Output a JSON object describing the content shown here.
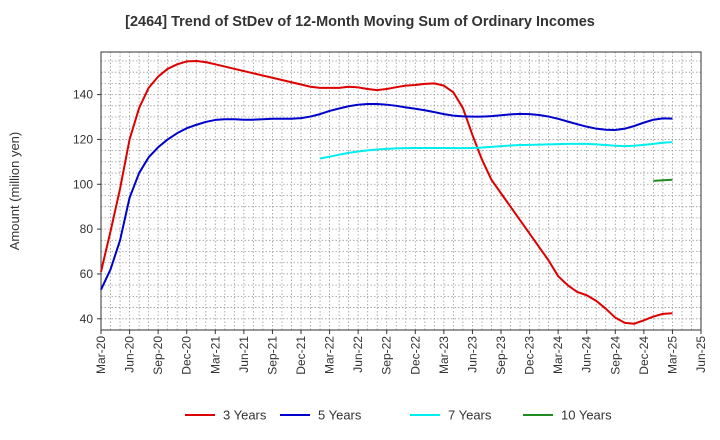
{
  "chart_data": {
    "type": "line",
    "title": "[2464]  Trend of StDev of 12-Month Moving Sum of Ordinary Incomes",
    "xlabel": "",
    "ylabel": "Amount (million yen)",
    "x_ticks": [
      "Mar-20",
      "Jun-20",
      "Sep-20",
      "Dec-20",
      "Mar-21",
      "Jun-21",
      "Sep-21",
      "Dec-21",
      "Mar-22",
      "Jun-22",
      "Sep-22",
      "Dec-22",
      "Mar-23",
      "Jun-23",
      "Sep-23",
      "Dec-23",
      "Mar-24",
      "Jun-24",
      "Sep-24",
      "Dec-24",
      "Mar-25",
      "Jun-25"
    ],
    "y_ticks": [
      40,
      60,
      80,
      100,
      120,
      140
    ],
    "xlim": [
      "2020-03",
      "2025-06"
    ],
    "ylim": [
      35,
      159
    ],
    "grid": true,
    "legend_position": "bottom",
    "series": [
      {
        "name": "3 Years",
        "color": "#dd0000",
        "points": [
          [
            "2020-03",
            61
          ],
          [
            "2020-04",
            79
          ],
          [
            "2020-05",
            98
          ],
          [
            "2020-06",
            120
          ],
          [
            "2020-07",
            134
          ],
          [
            "2020-08",
            143
          ],
          [
            "2020-09",
            148
          ],
          [
            "2020-10",
            151.5
          ],
          [
            "2020-11",
            153.5
          ],
          [
            "2020-12",
            154.8
          ],
          [
            "2021-01",
            155
          ],
          [
            "2021-02",
            154.5
          ],
          [
            "2021-03",
            153.5
          ],
          [
            "2021-04",
            152.5
          ],
          [
            "2021-05",
            151.5
          ],
          [
            "2021-06",
            150.5
          ],
          [
            "2021-07",
            149.5
          ],
          [
            "2021-08",
            148.5
          ],
          [
            "2021-09",
            147.5
          ],
          [
            "2021-10",
            146.5
          ],
          [
            "2021-11",
            145.5
          ],
          [
            "2021-12",
            144.5
          ],
          [
            "2022-01",
            143.5
          ],
          [
            "2022-02",
            143
          ],
          [
            "2022-03",
            143
          ],
          [
            "2022-04",
            143
          ],
          [
            "2022-05",
            143.5
          ],
          [
            "2022-06",
            143.2
          ],
          [
            "2022-07",
            142.5
          ],
          [
            "2022-08",
            142
          ],
          [
            "2022-09",
            142.5
          ],
          [
            "2022-10",
            143.3
          ],
          [
            "2022-11",
            144
          ],
          [
            "2022-12",
            144.3
          ],
          [
            "2023-01",
            144.8
          ],
          [
            "2023-02",
            145
          ],
          [
            "2023-03",
            144
          ],
          [
            "2023-04",
            141
          ],
          [
            "2023-05",
            134
          ],
          [
            "2023-06",
            122
          ],
          [
            "2023-07",
            111
          ],
          [
            "2023-08",
            102
          ],
          [
            "2023-09",
            96
          ],
          [
            "2023-10",
            90
          ],
          [
            "2023-11",
            84
          ],
          [
            "2023-12",
            78
          ],
          [
            "2024-01",
            72
          ],
          [
            "2024-02",
            66
          ],
          [
            "2024-03",
            59
          ],
          [
            "2024-04",
            55
          ],
          [
            "2024-05",
            52
          ],
          [
            "2024-06",
            50.5
          ],
          [
            "2024-07",
            48
          ],
          [
            "2024-08",
            44.5
          ],
          [
            "2024-09",
            40.5
          ],
          [
            "2024-10",
            38.2
          ],
          [
            "2024-11",
            37.8
          ],
          [
            "2024-12",
            39.3
          ],
          [
            "2025-01",
            41
          ],
          [
            "2025-02",
            42.2
          ],
          [
            "2025-03",
            42.5
          ]
        ]
      },
      {
        "name": "5 Years",
        "color": "#0000cc",
        "points": [
          [
            "2020-03",
            53
          ],
          [
            "2020-04",
            62
          ],
          [
            "2020-05",
            75
          ],
          [
            "2020-06",
            94
          ],
          [
            "2020-07",
            105
          ],
          [
            "2020-08",
            112
          ],
          [
            "2020-09",
            116.5
          ],
          [
            "2020-10",
            120
          ],
          [
            "2020-11",
            122.8
          ],
          [
            "2020-12",
            125
          ],
          [
            "2021-01",
            126.5
          ],
          [
            "2021-02",
            127.8
          ],
          [
            "2021-03",
            128.7
          ],
          [
            "2021-04",
            129
          ],
          [
            "2021-05",
            129
          ],
          [
            "2021-06",
            128.8
          ],
          [
            "2021-07",
            128.8
          ],
          [
            "2021-08",
            129
          ],
          [
            "2021-09",
            129.2
          ],
          [
            "2021-10",
            129.2
          ],
          [
            "2021-11",
            129.2
          ],
          [
            "2021-12",
            129.5
          ],
          [
            "2022-01",
            130.2
          ],
          [
            "2022-02",
            131.3
          ],
          [
            "2022-03",
            132.7
          ],
          [
            "2022-04",
            133.8
          ],
          [
            "2022-05",
            134.8
          ],
          [
            "2022-06",
            135.5
          ],
          [
            "2022-07",
            135.8
          ],
          [
            "2022-08",
            135.8
          ],
          [
            "2022-09",
            135.5
          ],
          [
            "2022-10",
            135
          ],
          [
            "2022-11",
            134.3
          ],
          [
            "2022-12",
            133.7
          ],
          [
            "2023-01",
            133
          ],
          [
            "2023-02",
            132.2
          ],
          [
            "2023-03",
            131.3
          ],
          [
            "2023-04",
            130.6
          ],
          [
            "2023-05",
            130.3
          ],
          [
            "2023-06",
            130.2
          ],
          [
            "2023-07",
            130.2
          ],
          [
            "2023-08",
            130.4
          ],
          [
            "2023-09",
            130.8
          ],
          [
            "2023-10",
            131.2
          ],
          [
            "2023-11",
            131.4
          ],
          [
            "2023-12",
            131.3
          ],
          [
            "2024-01",
            130.9
          ],
          [
            "2024-02",
            130.2
          ],
          [
            "2024-03",
            129.2
          ],
          [
            "2024-04",
            128
          ],
          [
            "2024-05",
            126.8
          ],
          [
            "2024-06",
            125.7
          ],
          [
            "2024-07",
            124.8
          ],
          [
            "2024-08",
            124.3
          ],
          [
            "2024-09",
            124.2
          ],
          [
            "2024-10",
            124.8
          ],
          [
            "2024-11",
            126
          ],
          [
            "2024-12",
            127.5
          ],
          [
            "2025-01",
            128.8
          ],
          [
            "2025-02",
            129.4
          ],
          [
            "2025-03",
            129.3
          ]
        ]
      },
      {
        "name": "7 Years",
        "color": "#00eeee",
        "points": [
          [
            "2022-02",
            111.5
          ],
          [
            "2022-03",
            112.3
          ],
          [
            "2022-04",
            113.2
          ],
          [
            "2022-05",
            114
          ],
          [
            "2022-06",
            114.6
          ],
          [
            "2022-07",
            115.1
          ],
          [
            "2022-08",
            115.5
          ],
          [
            "2022-09",
            115.8
          ],
          [
            "2022-10",
            116
          ],
          [
            "2022-11",
            116.1
          ],
          [
            "2022-12",
            116.2
          ],
          [
            "2023-01",
            116.2
          ],
          [
            "2023-02",
            116.2
          ],
          [
            "2023-03",
            116.2
          ],
          [
            "2023-04",
            116.1
          ],
          [
            "2023-05",
            116.1
          ],
          [
            "2023-06",
            116.2
          ],
          [
            "2023-07",
            116.4
          ],
          [
            "2023-08",
            116.7
          ],
          [
            "2023-09",
            117
          ],
          [
            "2023-10",
            117.3
          ],
          [
            "2023-11",
            117.5
          ],
          [
            "2023-12",
            117.6
          ],
          [
            "2024-01",
            117.7
          ],
          [
            "2024-02",
            117.8
          ],
          [
            "2024-03",
            117.9
          ],
          [
            "2024-04",
            118
          ],
          [
            "2024-05",
            118
          ],
          [
            "2024-06",
            118
          ],
          [
            "2024-07",
            117.8
          ],
          [
            "2024-08",
            117.5
          ],
          [
            "2024-09",
            117.2
          ],
          [
            "2024-10",
            117
          ],
          [
            "2024-11",
            117.2
          ],
          [
            "2024-12",
            117.6
          ],
          [
            "2025-01",
            118
          ],
          [
            "2025-02",
            118.5
          ],
          [
            "2025-03",
            118.8
          ]
        ]
      },
      {
        "name": "10 Years",
        "color": "#228b22",
        "points": [
          [
            "2025-01",
            101.5
          ],
          [
            "2025-02",
            101.8
          ],
          [
            "2025-03",
            102
          ]
        ]
      }
    ]
  }
}
